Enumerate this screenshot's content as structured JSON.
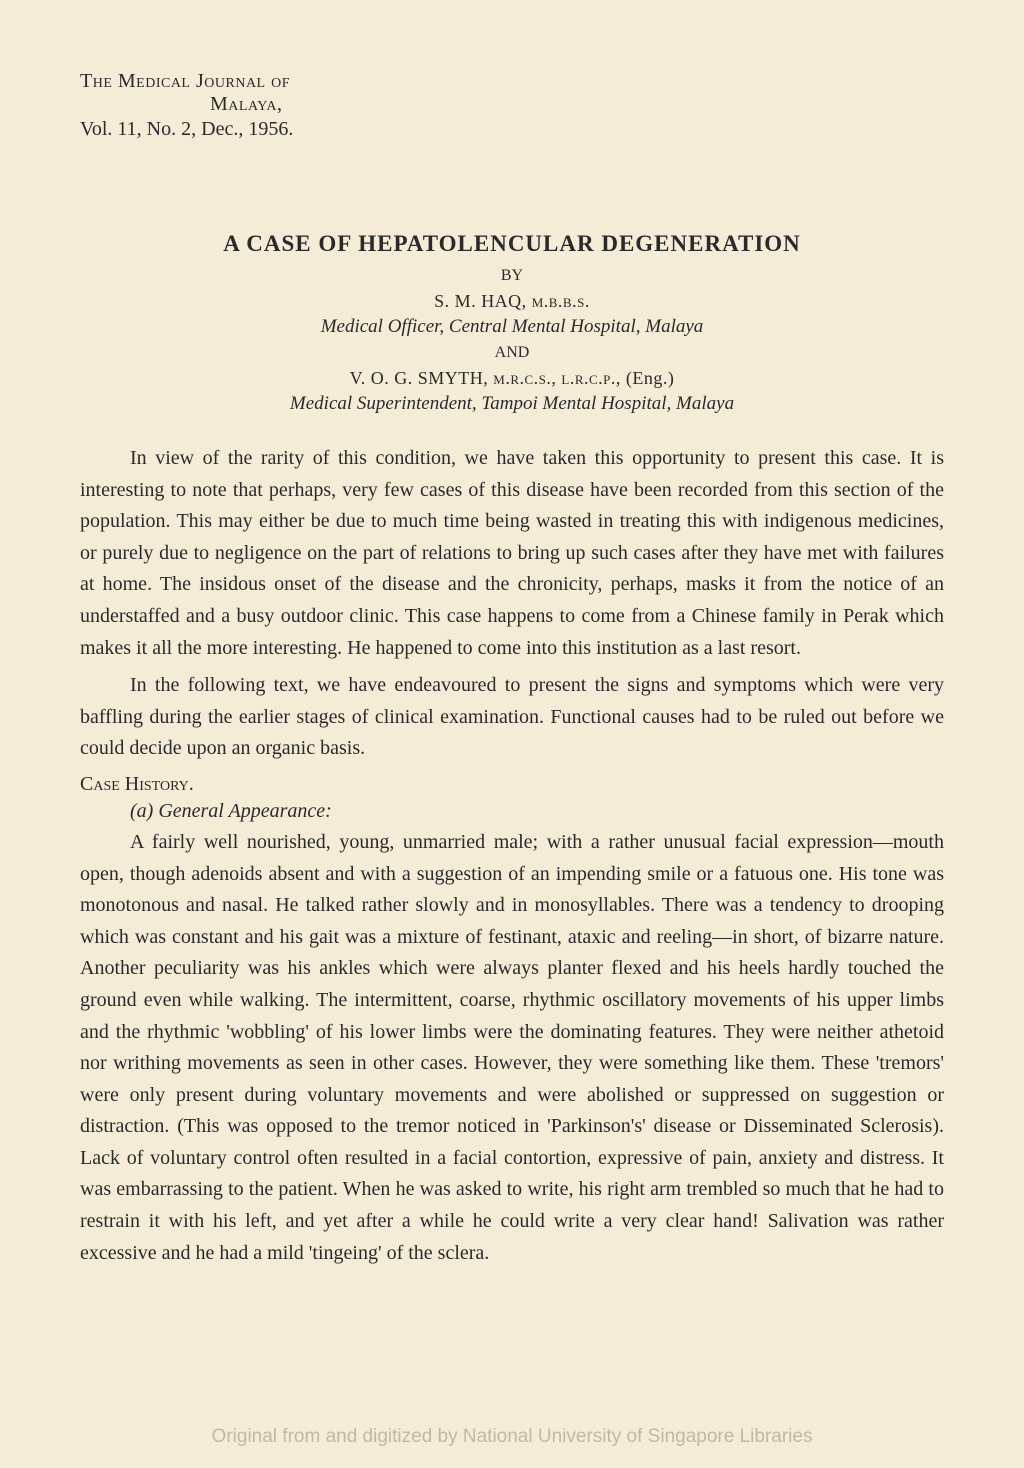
{
  "header": {
    "journal_line_1": "The Medical Journal of",
    "journal_line_2": "Malaya,",
    "volume_line": "Vol. 11, No. 2, Dec., 1956."
  },
  "title_section": {
    "main_title": "A  CASE  OF  HEPATOLENCULAR  DEGENERATION",
    "by": "BY",
    "author1_name": "S.  M.  HAQ,  ",
    "author1_cred": "m.b.b.s.",
    "author1_role": "Medical Officer, Central Mental Hospital, Malaya",
    "and": "AND",
    "author2_name": "V.  O.  G.  SMYTH,  ",
    "author2_cred": "m.r.c.s.,  l.r.c.p.,",
    "author2_suffix": "  (Eng.)",
    "author2_role": "Medical Superintendent, Tampoi Mental Hospital, Malaya"
  },
  "body": {
    "para1": "In view of the rarity of this condition, we have taken this opportunity to present this case. It is interesting to note that perhaps, very few cases of this disease have been recorded from this section of the population. This may either be due to much time being wasted in treating this with indigenous medicines, or purely due to negligence on the part of relations to bring up such cases after they have met with failures at home. The insidous onset of the disease and the chronicity, perhaps, masks it from the notice of an understaffed and a busy outdoor clinic. This case happens to come from a Chinese family in Perak which makes it all the more interesting. He happened to come into this institution as a last resort.",
    "para2": "In the following text, we have endeavoured to present the signs and symptoms which were very baffling during the earlier stages of clinical examination. Functional causes had to be ruled out before we could decide upon an organic basis.",
    "section_heading": "Case History.",
    "subsection": "(a)  General  Appearance:",
    "para3": "A fairly well nourished, young, unmarried male; with a rather unusual facial expression—mouth open, though adenoids absent and with a suggestion of an impending smile or a fatuous one. His tone was monotonous and nasal. He talked rather slowly and in monosyllables. There was a tendency to drooping which was constant and his gait was a mixture of festinant, ataxic and reeling—in short, of bizarre nature. Another peculiarity was his ankles which were always planter flexed and his heels hardly touched the ground even while walking. The intermittent, coarse, rhythmic oscillatory movements of his upper limbs and the rhythmic 'wobbling' of his lower limbs were the dominating features. They were neither athetoid nor writhing movements as seen in other cases. However, they were something like them. These 'tremors' were only present during voluntary movements and were abolished or suppressed on suggestion or distraction. (This was opposed to the tremor noticed in 'Parkinson's' disease or Disseminated Sclerosis). Lack of voluntary control often resulted in a facial contortion, expressive of pain, anxiety and distress. It was embarrassing to the patient. When he was asked to write, his right arm trembled so much that he had to restrain it with his left, and yet after a while he could write a very clear hand! Salivation was rather excessive and he had a mild 'tingeing' of the sclera."
  },
  "watermark": "Original from and digitized by National University of Singapore Libraries"
}
